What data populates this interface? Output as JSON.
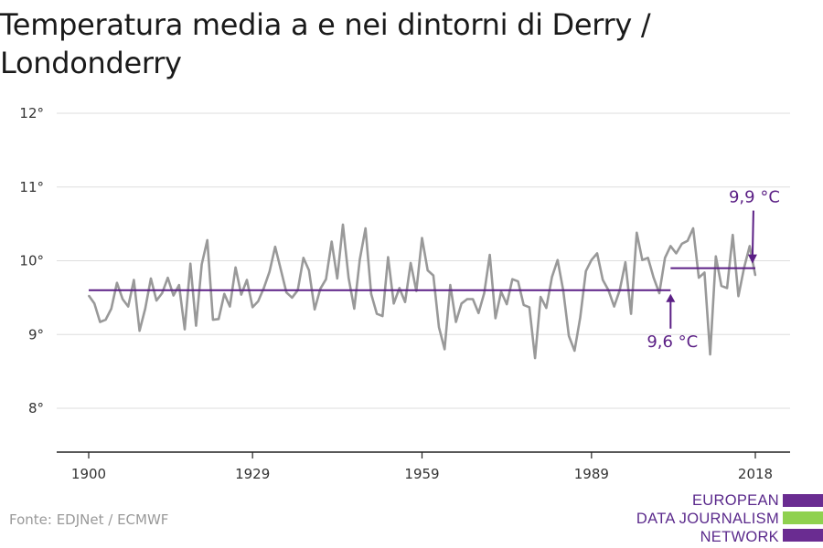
{
  "title": "Temperatura media a e nei dintorni di Derry / Londonderry",
  "source": "Fonte: EDJNet / ECMWF",
  "logo": {
    "lines": [
      "EUROPEAN",
      "DATA JOURNALISM",
      "NETWORK"
    ],
    "colors": [
      "#6a2c91",
      "#8fd14f",
      "#6a2c91"
    ]
  },
  "colors": {
    "series": "#999999",
    "mean": "#5b1f85",
    "grid": "#dddddd",
    "axis": "#222222"
  },
  "chart_data": {
    "type": "line",
    "xlim": [
      1900,
      2018
    ],
    "ylim": [
      7.6,
      12.0
    ],
    "y_ticks": [
      8,
      9,
      10,
      11,
      12
    ],
    "y_tick_labels": [
      "8°",
      "9°",
      "10°",
      "11°",
      "12°"
    ],
    "x_ticks": [
      1900,
      1929,
      1959,
      1989,
      2018
    ],
    "x_tick_labels": [
      "1900",
      "1929",
      "1959",
      "1989",
      "2018"
    ],
    "grid": true,
    "x": [
      1900,
      1901,
      1902,
      1903,
      1904,
      1905,
      1906,
      1907,
      1908,
      1909,
      1910,
      1911,
      1912,
      1913,
      1914,
      1915,
      1916,
      1917,
      1918,
      1919,
      1920,
      1921,
      1922,
      1923,
      1924,
      1925,
      1926,
      1927,
      1928,
      1929,
      1930,
      1931,
      1932,
      1933,
      1934,
      1935,
      1936,
      1937,
      1938,
      1939,
      1940,
      1941,
      1942,
      1943,
      1944,
      1945,
      1946,
      1947,
      1948,
      1949,
      1950,
      1951,
      1952,
      1953,
      1954,
      1955,
      1956,
      1957,
      1958,
      1959,
      1960,
      1961,
      1962,
      1963,
      1964,
      1965,
      1966,
      1967,
      1968,
      1969,
      1970,
      1971,
      1972,
      1973,
      1974,
      1975,
      1976,
      1977,
      1978,
      1979,
      1980,
      1981,
      1982,
      1983,
      1984,
      1985,
      1986,
      1987,
      1988,
      1989,
      1990,
      1991,
      1992,
      1993,
      1994,
      1995,
      1996,
      1997,
      1998,
      1999,
      2000,
      2001,
      2002,
      2003,
      2004,
      2005,
      2006,
      2007,
      2008,
      2009,
      2010,
      2011,
      2012,
      2013,
      2014,
      2015,
      2016,
      2017,
      2018
    ],
    "series": [
      {
        "values": [
          9.53,
          9.42,
          9.17,
          9.2,
          9.35,
          9.7,
          9.48,
          9.38,
          9.74,
          9.05,
          9.35,
          9.76,
          9.46,
          9.56,
          9.77,
          9.53,
          9.67,
          9.07,
          9.96,
          9.12,
          9.95,
          10.28,
          9.2,
          9.21,
          9.55,
          9.38,
          9.91,
          9.54,
          9.74,
          9.37,
          9.45,
          9.63,
          9.85,
          10.19,
          9.88,
          9.57,
          9.5,
          9.6,
          10.04,
          9.87,
          9.34,
          9.62,
          9.75,
          10.26,
          9.76,
          10.49,
          9.77,
          9.35,
          10.02,
          10.44,
          9.55,
          9.28,
          9.25,
          10.05,
          9.42,
          9.63,
          9.44,
          9.97,
          9.59,
          10.31,
          9.87,
          9.8,
          9.1,
          8.8,
          9.67,
          9.17,
          9.42,
          9.48,
          9.48,
          9.29,
          9.56,
          10.08,
          9.22,
          9.58,
          9.41,
          9.75,
          9.72,
          9.4,
          9.37,
          8.68,
          9.51,
          9.36,
          9.78,
          10.01,
          9.6,
          8.98,
          8.78,
          9.23,
          9.86,
          10.01,
          10.1,
          9.74,
          9.6,
          9.38,
          9.6,
          9.98,
          9.28,
          10.38,
          10.01,
          10.04,
          9.77,
          9.56,
          10.04,
          10.2,
          10.1,
          10.23,
          10.27,
          10.44,
          9.77,
          9.84,
          8.73,
          10.06,
          9.66,
          9.63,
          10.35,
          9.52,
          9.9,
          10.2,
          9.8
        ]
      }
    ],
    "means": [
      {
        "label": "9,6 °C",
        "value": 9.6,
        "x_start": 1900,
        "x_end": 2003
      },
      {
        "label": "9,9 °C",
        "value": 9.9,
        "x_start": 2003,
        "x_end": 2018
      }
    ]
  }
}
